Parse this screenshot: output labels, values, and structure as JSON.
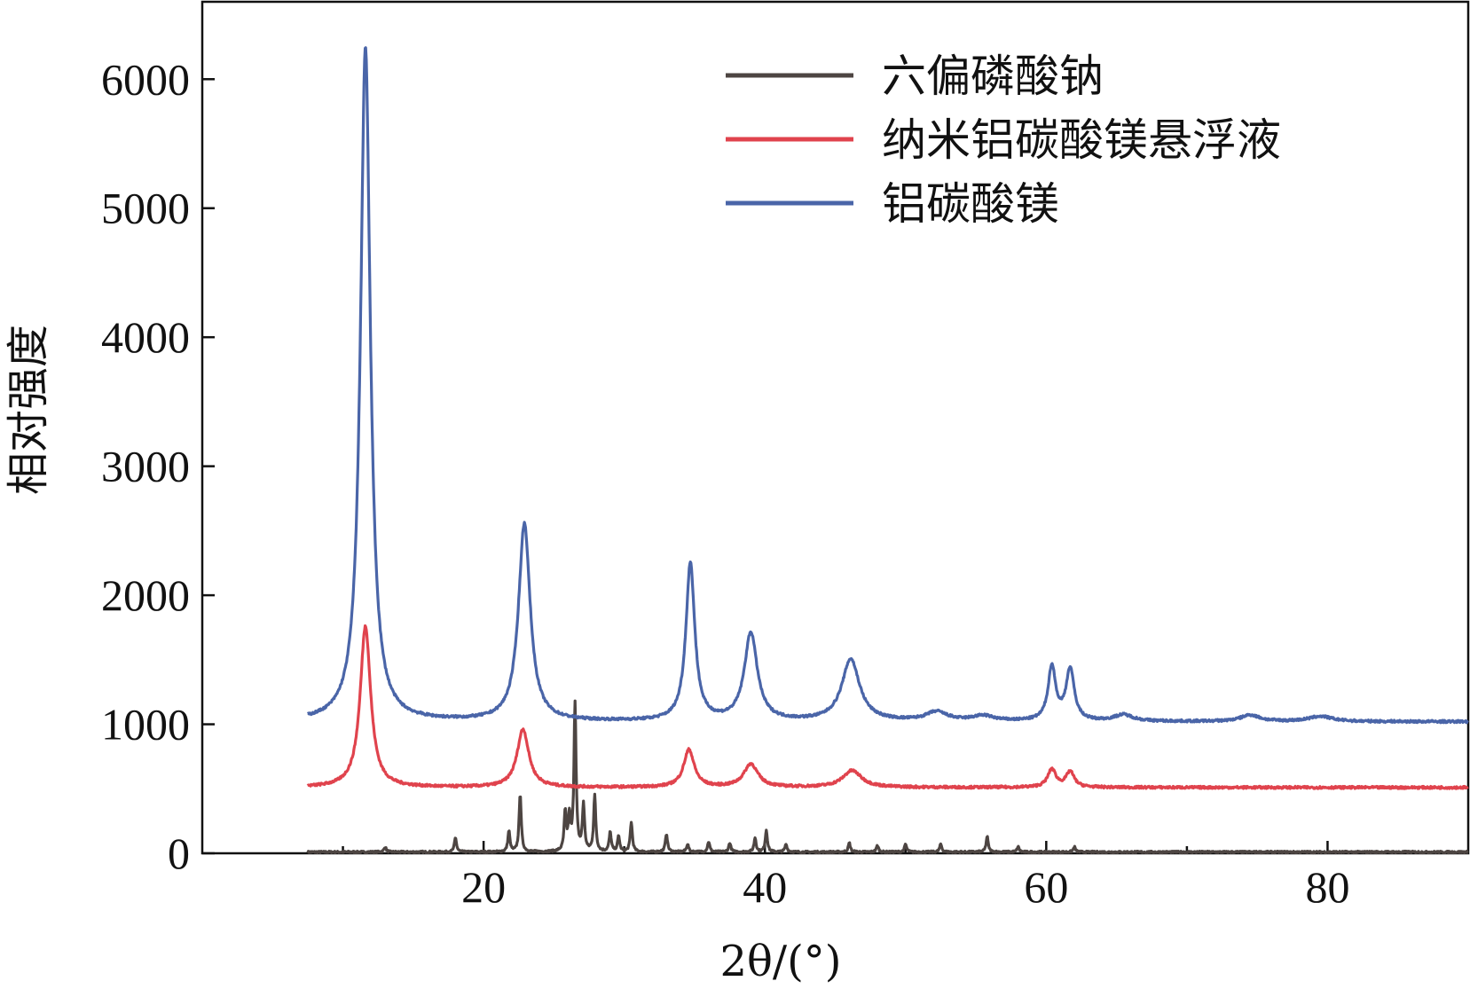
{
  "chart_data": {
    "type": "line",
    "title": "",
    "xlabel": "2θ/(°)",
    "ylabel": "相对强度",
    "xlim": [
      0,
      90
    ],
    "ylim": [
      0,
      6600
    ],
    "xticks": [
      20,
      40,
      60,
      80
    ],
    "yticks": [
      0,
      1000,
      2000,
      3000,
      4000,
      5000,
      6000
    ],
    "grid": false,
    "legend_position": "top-right",
    "series": [
      {
        "name": "六偏磷酸钠",
        "color": "#4d4542",
        "baseline": 10,
        "peaks": [
          {
            "x": 13.0,
            "h": 40
          },
          {
            "x": 18.0,
            "h": 110
          },
          {
            "x": 21.8,
            "h": 160
          },
          {
            "x": 22.6,
            "h": 450
          },
          {
            "x": 25.8,
            "h": 300
          },
          {
            "x": 26.1,
            "h": 260
          },
          {
            "x": 26.5,
            "h": 1150
          },
          {
            "x": 27.1,
            "h": 360
          },
          {
            "x": 27.9,
            "h": 430
          },
          {
            "x": 29.0,
            "h": 150
          },
          {
            "x": 29.6,
            "h": 120
          },
          {
            "x": 30.5,
            "h": 230
          },
          {
            "x": 33.0,
            "h": 140
          },
          {
            "x": 34.5,
            "h": 60
          },
          {
            "x": 36.0,
            "h": 80
          },
          {
            "x": 37.5,
            "h": 70
          },
          {
            "x": 39.3,
            "h": 110
          },
          {
            "x": 40.1,
            "h": 170
          },
          {
            "x": 41.5,
            "h": 60
          },
          {
            "x": 46.0,
            "h": 70
          },
          {
            "x": 48.0,
            "h": 50
          },
          {
            "x": 50.0,
            "h": 60
          },
          {
            "x": 52.5,
            "h": 60
          },
          {
            "x": 55.8,
            "h": 120
          },
          {
            "x": 58.0,
            "h": 40
          },
          {
            "x": 62.0,
            "h": 40
          }
        ]
      },
      {
        "name": "纳米铝碳酸镁悬浮液",
        "color": "#e0434d",
        "baseline": 510,
        "peaks": [
          {
            "x": 11.6,
            "h": 1250,
            "w": 0.45
          },
          {
            "x": 22.8,
            "h": 450,
            "w": 0.5
          },
          {
            "x": 34.6,
            "h": 290,
            "w": 0.45
          },
          {
            "x": 39.0,
            "h": 180,
            "w": 0.6
          },
          {
            "x": 46.2,
            "h": 130,
            "w": 0.8
          },
          {
            "x": 60.4,
            "h": 140,
            "w": 0.35
          },
          {
            "x": 61.7,
            "h": 120,
            "w": 0.35
          }
        ]
      },
      {
        "name": "铝碳酸镁",
        "color": "#4a65a8",
        "baseline": 1020,
        "peaks": [
          {
            "x": 11.6,
            "h": 5230,
            "w": 0.42
          },
          {
            "x": 22.9,
            "h": 1530,
            "w": 0.5
          },
          {
            "x": 34.7,
            "h": 1220,
            "w": 0.38
          },
          {
            "x": 39.0,
            "h": 680,
            "w": 0.55
          },
          {
            "x": 46.1,
            "h": 480,
            "w": 0.75
          },
          {
            "x": 52.2,
            "h": 70,
            "w": 0.9
          },
          {
            "x": 55.5,
            "h": 40,
            "w": 0.9
          },
          {
            "x": 60.4,
            "h": 420,
            "w": 0.32
          },
          {
            "x": 61.7,
            "h": 400,
            "w": 0.35
          },
          {
            "x": 65.5,
            "h": 50,
            "w": 0.8
          },
          {
            "x": 74.5,
            "h": 50,
            "w": 0.8
          },
          {
            "x": 79.5,
            "h": 40,
            "w": 1.0
          }
        ]
      }
    ]
  }
}
